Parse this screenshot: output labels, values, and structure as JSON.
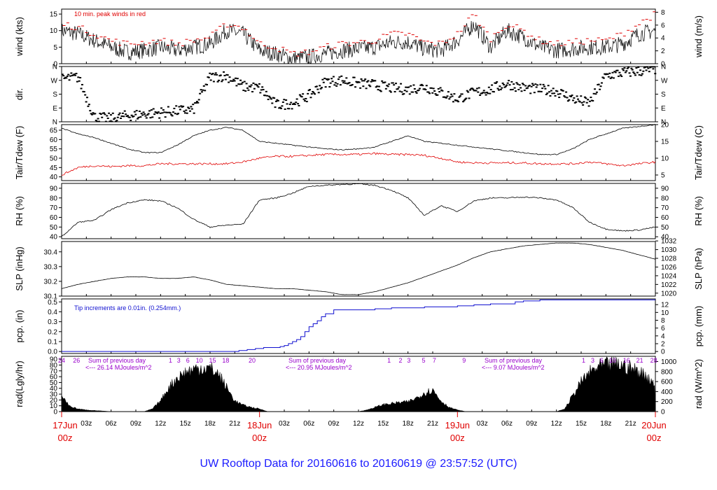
{
  "title": "UW Rooftop Data for 20160616  to  20160619 @ 23:57:52  (UTC)",
  "colors": {
    "ink": "#000000",
    "red": "#e00000",
    "blue": "#1010d0",
    "purple": "#9900cc",
    "title": "#1a1aff"
  },
  "x_axis": {
    "hour_ticks": [
      "03z",
      "06z",
      "09z",
      "12z",
      "15z",
      "18z",
      "21z",
      "03z",
      "06z",
      "09z",
      "12z",
      "15z",
      "18z",
      "21z",
      "03z",
      "06z",
      "09z",
      "12z",
      "15z",
      "18z",
      "21z"
    ],
    "hour_offsets": [
      3,
      6,
      9,
      12,
      15,
      18,
      21,
      27,
      30,
      33,
      36,
      39,
      42,
      45,
      51,
      54,
      57,
      60,
      63,
      66,
      69
    ],
    "day_labels": [
      {
        "day": "17Jun",
        "hour": "00z",
        "offset": 0
      },
      {
        "day": "18Jun",
        "hour": "00z",
        "offset": 24
      },
      {
        "day": "19Jun",
        "hour": "00z",
        "offset": 48
      },
      {
        "day": "20Jun",
        "hour": "00z",
        "offset": 72
      }
    ]
  },
  "chart_data": [
    {
      "type": "line",
      "panel": "wind",
      "ylabel": "wind (kts)",
      "ylabel_right": "wind (m/s)",
      "ylim": [
        0,
        16.5
      ],
      "left_ticks": [
        0,
        5,
        10,
        15
      ],
      "right_ticks": [
        "0",
        "2",
        "4",
        "6",
        "8"
      ],
      "right_tick_values": [
        0,
        3.888,
        7.776,
        11.664,
        15.552
      ],
      "annotation": "10 min. peak winds in red",
      "x": [
        0,
        2,
        4,
        6,
        8,
        10,
        12,
        14,
        16,
        18,
        20,
        22,
        24,
        26,
        28,
        30,
        32,
        34,
        36,
        38,
        40,
        42,
        44,
        46,
        48,
        50,
        52,
        54,
        56,
        58,
        60,
        62,
        64,
        66,
        68,
        70,
        72
      ],
      "series": [
        {
          "values": [
            10,
            9,
            7,
            5,
            3.5,
            4,
            5,
            4,
            5,
            6,
            10,
            9,
            4,
            3,
            1.5,
            2,
            3,
            4,
            4.5,
            5,
            6.5,
            6.5,
            4.5,
            4,
            7,
            12,
            5,
            10,
            8,
            5,
            4,
            4.5,
            5,
            5,
            6,
            9,
            10
          ]
        },
        {
          "name": "10 min. peak winds",
          "values": [
            12,
            11,
            9,
            7,
            6,
            6.5,
            7,
            6,
            7,
            8,
            12,
            11,
            6,
            5,
            3,
            3.5,
            5,
            6,
            6.5,
            7,
            9,
            9,
            6.5,
            6,
            9,
            15,
            7.5,
            12,
            10,
            7,
            6,
            6.5,
            7,
            7,
            9,
            12,
            15
          ]
        }
      ]
    },
    {
      "type": "scatter",
      "panel": "dir",
      "ylabel": "dir.",
      "ylim": [
        0,
        360
      ],
      "left_ticks": [
        "N",
        "E",
        "S",
        "W",
        "N"
      ],
      "right_ticks": [
        "N",
        "E",
        "S",
        "W",
        "N"
      ],
      "tick_values": [
        0,
        90,
        180,
        270,
        360
      ],
      "x": [
        0,
        2,
        4,
        6,
        8,
        10,
        12,
        14,
        16,
        18,
        20,
        22,
        24,
        26,
        28,
        30,
        32,
        34,
        36,
        38,
        40,
        42,
        44,
        46,
        48,
        50,
        52,
        54,
        56,
        58,
        60,
        62,
        64,
        66,
        68,
        70,
        72
      ],
      "values": [
        280,
        290,
        30,
        20,
        40,
        50,
        60,
        70,
        80,
        290,
        300,
        230,
        220,
        110,
        120,
        170,
        260,
        270,
        250,
        240,
        220,
        210,
        230,
        190,
        150,
        190,
        210,
        250,
        220,
        210,
        200,
        150,
        120,
        300,
        320,
        330,
        340
      ]
    },
    {
      "type": "line",
      "panel": "temp",
      "ylabel": "Tair/Tdew (F)",
      "ylabel_right": "Tair/Tdew (C)",
      "ylim": [
        38,
        68
      ],
      "left_ticks": [
        40,
        45,
        50,
        55,
        60,
        65
      ],
      "right_ticks": [
        "5",
        "10",
        "15",
        "20"
      ],
      "right_tick_values": [
        41,
        50,
        59,
        68
      ],
      "x": [
        0,
        2,
        4,
        6,
        8,
        10,
        12,
        14,
        16,
        18,
        20,
        22,
        24,
        26,
        28,
        30,
        32,
        34,
        36,
        38,
        40,
        42,
        44,
        46,
        48,
        50,
        52,
        54,
        56,
        58,
        60,
        62,
        64,
        66,
        68,
        70,
        72
      ],
      "series": [
        {
          "name": "Tair",
          "values": [
            66,
            63,
            61,
            58,
            55,
            53,
            53,
            57,
            62,
            65,
            66.5,
            65,
            59,
            58,
            57,
            56,
            55,
            54.5,
            55,
            56,
            59,
            62,
            59,
            58,
            57,
            56,
            55,
            54,
            53,
            52,
            52,
            55,
            60,
            63,
            66,
            67,
            68
          ]
        },
        {
          "name": "Tdew",
          "values": [
            41,
            45,
            46,
            45.5,
            46,
            46,
            47,
            47,
            47,
            47,
            47,
            48,
            50,
            51,
            51,
            51.5,
            52,
            52,
            52,
            52.5,
            52,
            52,
            51.5,
            50,
            48,
            47.5,
            47.5,
            47.5,
            47.5,
            47,
            47,
            47,
            48,
            47,
            46,
            47,
            48
          ]
        }
      ]
    },
    {
      "type": "line",
      "panel": "rh",
      "ylabel": "RH (%)",
      "ylabel_right": "RH (%)",
      "ylim": [
        38,
        95
      ],
      "left_ticks": [
        40,
        50,
        60,
        70,
        80,
        90
      ],
      "right_ticks": [
        40,
        50,
        60,
        70,
        80,
        90
      ],
      "x": [
        0,
        2,
        4,
        6,
        8,
        10,
        12,
        14,
        16,
        18,
        20,
        22,
        24,
        26,
        28,
        30,
        32,
        34,
        36,
        38,
        40,
        42,
        44,
        46,
        48,
        50,
        52,
        54,
        56,
        58,
        60,
        62,
        64,
        66,
        68,
        70,
        72
      ],
      "values": [
        40,
        55,
        57,
        68,
        75,
        78,
        77,
        70,
        58,
        50,
        52,
        53,
        78,
        80,
        85,
        92,
        93,
        94,
        94.5,
        93,
        88,
        80,
        62,
        72,
        66,
        77,
        80,
        80,
        81,
        80,
        78,
        70,
        55,
        48,
        46,
        47,
        50
      ]
    },
    {
      "type": "line",
      "panel": "slp",
      "ylabel": "SLP (inHg)",
      "ylabel_right": "SLP (hPa)",
      "ylim": [
        30.1,
        30.47
      ],
      "left_ticks": [
        30.1,
        30.2,
        30.3,
        30.4
      ],
      "right_ticks": [
        "1020",
        "1022",
        "1024",
        "1026",
        "1028",
        "1030",
        "1032"
      ],
      "right_tick_values": [
        30.12,
        30.179,
        30.238,
        30.297,
        30.356,
        30.415,
        30.474
      ],
      "x": [
        0,
        2,
        4,
        6,
        8,
        10,
        12,
        14,
        16,
        18,
        20,
        22,
        24,
        26,
        28,
        30,
        32,
        34,
        36,
        38,
        40,
        42,
        44,
        46,
        48,
        50,
        52,
        54,
        56,
        58,
        60,
        62,
        64,
        66,
        68,
        70,
        72
      ],
      "values": [
        30.15,
        30.18,
        30.2,
        30.22,
        30.23,
        30.23,
        30.22,
        30.22,
        30.23,
        30.21,
        30.18,
        30.17,
        30.16,
        30.15,
        30.15,
        30.14,
        30.13,
        30.11,
        30.11,
        30.13,
        30.16,
        30.19,
        30.23,
        30.27,
        30.31,
        30.36,
        30.4,
        30.42,
        30.44,
        30.45,
        30.46,
        30.46,
        30.45,
        30.43,
        30.41,
        30.38,
        30.35
      ]
    },
    {
      "type": "line",
      "panel": "pcp",
      "ylabel": "pcp. (in)",
      "ylabel_right": "pcp. (mm)",
      "ylim": [
        -0.02,
        0.53
      ],
      "left_ticks": [
        0.0,
        0.1,
        0.2,
        0.3,
        0.4,
        0.5
      ],
      "right_ticks": [
        "0",
        "2",
        "4",
        "6",
        "8",
        "10",
        "12"
      ],
      "right_tick_values": [
        0,
        0.0787,
        0.1575,
        0.2362,
        0.315,
        0.3937,
        0.4724
      ],
      "annotation": "Tip increments are 0.01in. (0.254mm.)",
      "x": [
        0,
        20.5,
        21.5,
        22.5,
        23.5,
        24.5,
        25.5,
        26.5,
        27,
        27.5,
        28,
        28.5,
        29,
        29.5,
        30,
        30.5,
        31,
        31.5,
        32,
        33,
        36,
        38,
        40,
        42,
        44,
        46,
        48,
        50,
        52,
        54,
        55,
        56,
        58,
        72
      ],
      "values": [
        0,
        0,
        0.01,
        0.02,
        0.03,
        0.04,
        0.04,
        0.05,
        0.06,
        0.08,
        0.1,
        0.12,
        0.15,
        0.2,
        0.25,
        0.28,
        0.31,
        0.35,
        0.38,
        0.42,
        0.42,
        0.43,
        0.44,
        0.44,
        0.45,
        0.45,
        0.46,
        0.47,
        0.48,
        0.48,
        0.5,
        0.51,
        0.52,
        0.52
      ]
    },
    {
      "type": "area",
      "panel": "rad",
      "ylabel": "rad(Lgly/hr)",
      "ylabel_right": "rad (W/m^2)",
      "ylim": [
        0,
        95
      ],
      "left_ticks": [
        0,
        10,
        20,
        30,
        40,
        50,
        60,
        70,
        80,
        90
      ],
      "right_ticks": [
        "0",
        "200",
        "400",
        "600",
        "800",
        "1000"
      ],
      "right_tick_values": [
        0,
        17.2,
        34.4,
        51.6,
        68.8,
        86
      ],
      "x": [
        0,
        1,
        2,
        3,
        4,
        5,
        6,
        10,
        11,
        12,
        13,
        14,
        15,
        16,
        17,
        18,
        19,
        20,
        21,
        22,
        23,
        24,
        25,
        36,
        37,
        38,
        39,
        40,
        41,
        42,
        43,
        44,
        45,
        46,
        47,
        48,
        49,
        60,
        61,
        62,
        63,
        64,
        65,
        66,
        67,
        68,
        69,
        70,
        71,
        72
      ],
      "values": [
        30,
        10,
        5,
        3,
        2,
        1,
        0,
        0,
        5,
        20,
        45,
        62,
        73,
        78,
        82,
        80,
        70,
        45,
        20,
        12,
        8,
        5,
        0,
        0,
        3,
        8,
        13,
        15,
        17,
        18,
        25,
        35,
        40,
        20,
        8,
        3,
        0,
        0,
        5,
        30,
        55,
        72,
        82,
        86,
        88,
        86,
        80,
        75,
        65,
        50
      ],
      "day_sums": [
        {
          "text": "Sum of previous day",
          "value_text": "<--- 26.14 MJoules/m^2"
        },
        {
          "text": "Sum of previous day",
          "value_text": "<--- 20.95 MJoules/m^2"
        },
        {
          "text": "Sum of previous day",
          "value_text": "<--- 9.07 MJoules/m^2"
        }
      ],
      "hour_labels": [
        {
          "text": "24",
          "h": 0
        },
        {
          "text": "26",
          "h": 1.8
        },
        {
          "text": "1",
          "h": 13.2
        },
        {
          "text": "3",
          "h": 14.2
        },
        {
          "text": "6",
          "h": 15.3
        },
        {
          "text": "10",
          "h": 16.7
        },
        {
          "text": "15",
          "h": 18.3
        },
        {
          "text": "18",
          "h": 19.9
        },
        {
          "text": "20",
          "h": 23.1
        },
        {
          "text": "1",
          "h": 39.7
        },
        {
          "text": "2",
          "h": 41.1
        },
        {
          "text": "3",
          "h": 42.1
        },
        {
          "text": "5",
          "h": 43.9
        },
        {
          "text": "7",
          "h": 45.2
        },
        {
          "text": "9",
          "h": 48.8
        },
        {
          "text": "1",
          "h": 63.3
        },
        {
          "text": "3",
          "h": 64.4
        },
        {
          "text": "6",
          "h": 65.5
        },
        {
          "text": "10",
          "h": 66.8
        },
        {
          "text": "16",
          "h": 68.5
        },
        {
          "text": "21",
          "h": 70.1
        },
        {
          "text": "28",
          "h": 71.8
        }
      ]
    }
  ]
}
